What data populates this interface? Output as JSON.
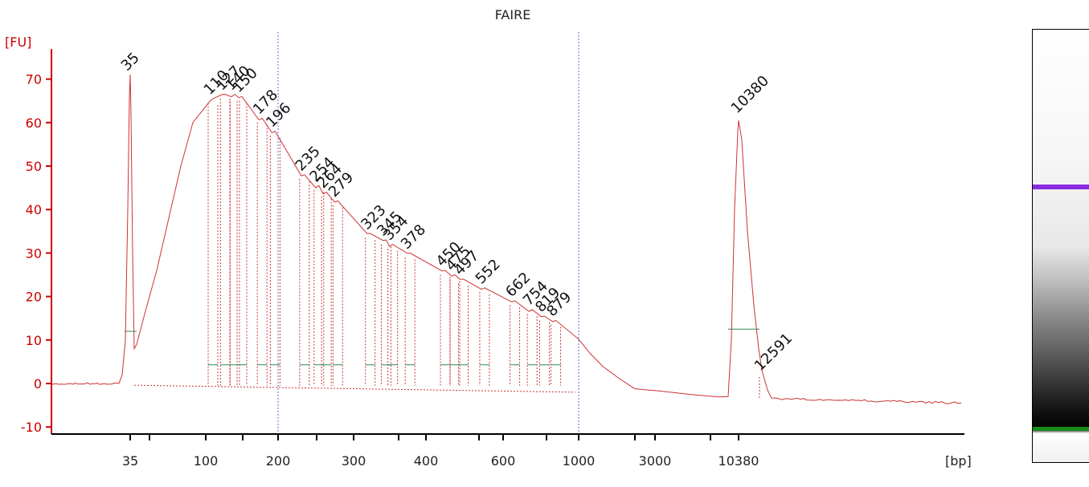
{
  "chart_data": {
    "type": "line",
    "title": "FAIRE",
    "ylabel": "[FU]",
    "xlabel": "[bp]",
    "ylim": [
      -12,
      76
    ],
    "yticks": [
      -10,
      0,
      10,
      20,
      30,
      40,
      50,
      60,
      70
    ],
    "xticks": [
      "35",
      "100",
      "200",
      "300",
      "400",
      "600",
      "1000",
      "3000",
      "10380"
    ],
    "grid": false,
    "colors": {
      "trace": "#cc3333",
      "axis": "#cc0000",
      "lower_marker": "#1a8a1a",
      "upper_marker": "#8a2be2",
      "baseline": "#2e8b57",
      "guide": "#6666cc"
    },
    "lower_marker": {
      "label": "35",
      "x": "35",
      "y": 71
    },
    "upper_marker": {
      "label": "10380",
      "x": "10380",
      "y": 60.5
    },
    "peaks": [
      {
        "label": "110",
        "size": 110,
        "y": 65.5
      },
      {
        "label": "127",
        "size": 127,
        "y": 66.5
      },
      {
        "label": "140",
        "size": 140,
        "y": 66.5
      },
      {
        "label": "150",
        "size": 150,
        "y": 66
      },
      {
        "label": "178",
        "size": 178,
        "y": 61
      },
      {
        "label": "196",
        "size": 196,
        "y": 58
      },
      {
        "label": "235",
        "size": 235,
        "y": 48
      },
      {
        "label": "254",
        "size": 254,
        "y": 45.5
      },
      {
        "label": "264",
        "size": 264,
        "y": 44
      },
      {
        "label": "279",
        "size": 279,
        "y": 42
      },
      {
        "label": "323",
        "size": 323,
        "y": 34.5
      },
      {
        "label": "345",
        "size": 345,
        "y": 33
      },
      {
        "label": "354",
        "size": 354,
        "y": 32
      },
      {
        "label": "378",
        "size": 378,
        "y": 30
      },
      {
        "label": "450",
        "size": 450,
        "y": 26
      },
      {
        "label": "475",
        "size": 475,
        "y": 25
      },
      {
        "label": "497",
        "size": 497,
        "y": 24
      },
      {
        "label": "552",
        "size": 552,
        "y": 22
      },
      {
        "label": "662",
        "size": 662,
        "y": 19
      },
      {
        "label": "754",
        "size": 754,
        "y": 17
      },
      {
        "label": "819",
        "size": 819,
        "y": 15.5
      },
      {
        "label": "879",
        "size": 879,
        "y": 14.5
      },
      {
        "label": "12591",
        "size": 12591,
        "y": 2
      }
    ]
  }
}
